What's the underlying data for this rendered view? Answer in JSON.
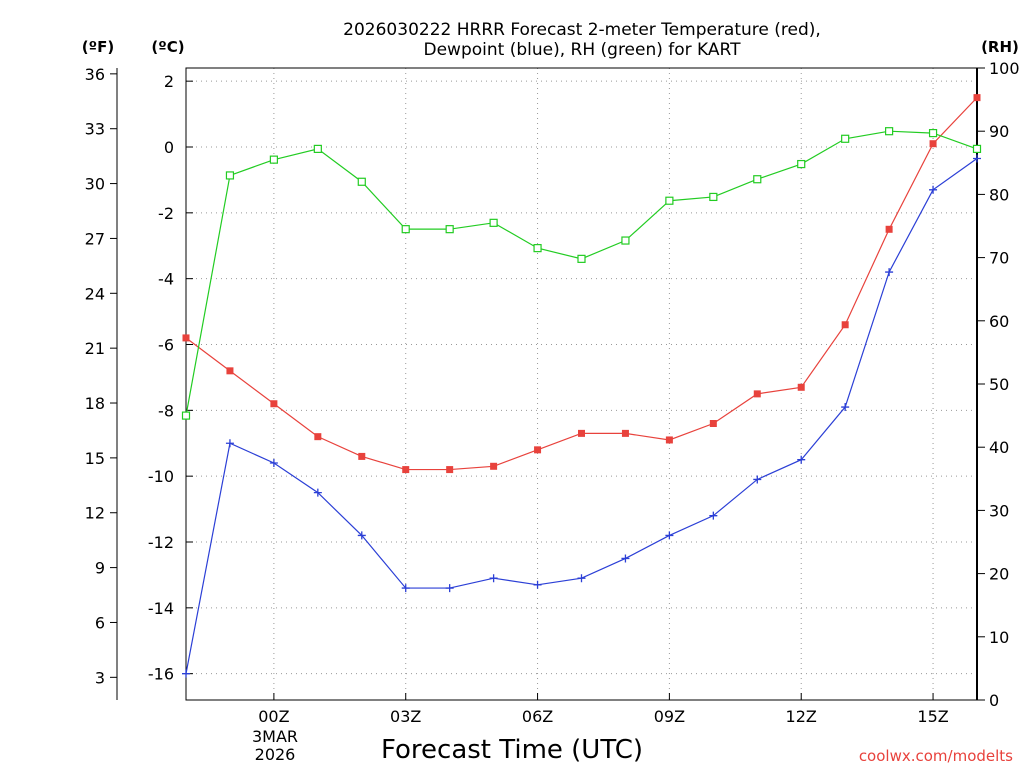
{
  "chart_data": {
    "type": "line",
    "title": [
      "2026030222 HRRR Forecast 2-meter Temperature (red),",
      "Dewpoint (blue), RH (green) for KART"
    ],
    "xlabel": "Forecast Time (UTC)",
    "credit": "coolwx.com/modelts",
    "units": {
      "fahrenheit": "(ºF)",
      "celsius": "(ºC)",
      "rh": "(RH)"
    },
    "x": [
      -2,
      -1,
      0,
      1,
      2,
      3,
      4,
      5,
      6,
      7,
      8,
      9,
      10,
      11,
      12,
      13,
      14,
      15,
      16
    ],
    "xlim": [
      -2,
      16
    ],
    "x_ticks": [
      0,
      3,
      6,
      9,
      12,
      15
    ],
    "x_tick_labels": [
      "00Z",
      "03Z",
      "06Z",
      "09Z",
      "12Z",
      "15Z"
    ],
    "date_label": [
      "3MAR",
      "2026"
    ],
    "ylim_c": [
      -16.8,
      2.4
    ],
    "y_ticks_c": [
      2,
      0,
      -2,
      -4,
      -6,
      -8,
      -10,
      -12,
      -14,
      -16
    ],
    "y_ticks_f": [
      36,
      33,
      30,
      27,
      24,
      21,
      18,
      15,
      12,
      9,
      6,
      3
    ],
    "ylim_rh": [
      0,
      100
    ],
    "y_ticks_rh": [
      100,
      90,
      80,
      70,
      60,
      50,
      40,
      30,
      20,
      10,
      0
    ],
    "series": [
      {
        "name": "Temperature",
        "axis": "celsius",
        "color": "#e8423c",
        "marker": "square-filled",
        "values": [
          -5.8,
          -6.8,
          -7.8,
          -8.8,
          -9.4,
          -9.8,
          -9.8,
          -9.7,
          -9.2,
          -8.7,
          -8.7,
          -8.9,
          -8.4,
          -7.5,
          -7.3,
          -5.4,
          -2.5,
          0.1,
          1.5
        ]
      },
      {
        "name": "Dewpoint",
        "axis": "celsius",
        "color": "#2b3fd6",
        "marker": "plus",
        "values": [
          -16.0,
          -9.0,
          -9.6,
          -10.5,
          -11.8,
          -13.4,
          -13.4,
          -13.1,
          -13.3,
          -13.1,
          -12.5,
          -11.8,
          -11.2,
          -10.1,
          -9.5,
          -7.9,
          -3.8,
          -1.3,
          -0.35
        ]
      },
      {
        "name": "RH",
        "axis": "rh",
        "color": "#22cc22",
        "marker": "square-open",
        "values": [
          45,
          83,
          85.5,
          87.2,
          82,
          74.5,
          74.5,
          75.5,
          71.5,
          69.8,
          72.7,
          79,
          79.6,
          82.4,
          84.8,
          88.8,
          90,
          89.7,
          87.2
        ]
      }
    ]
  }
}
